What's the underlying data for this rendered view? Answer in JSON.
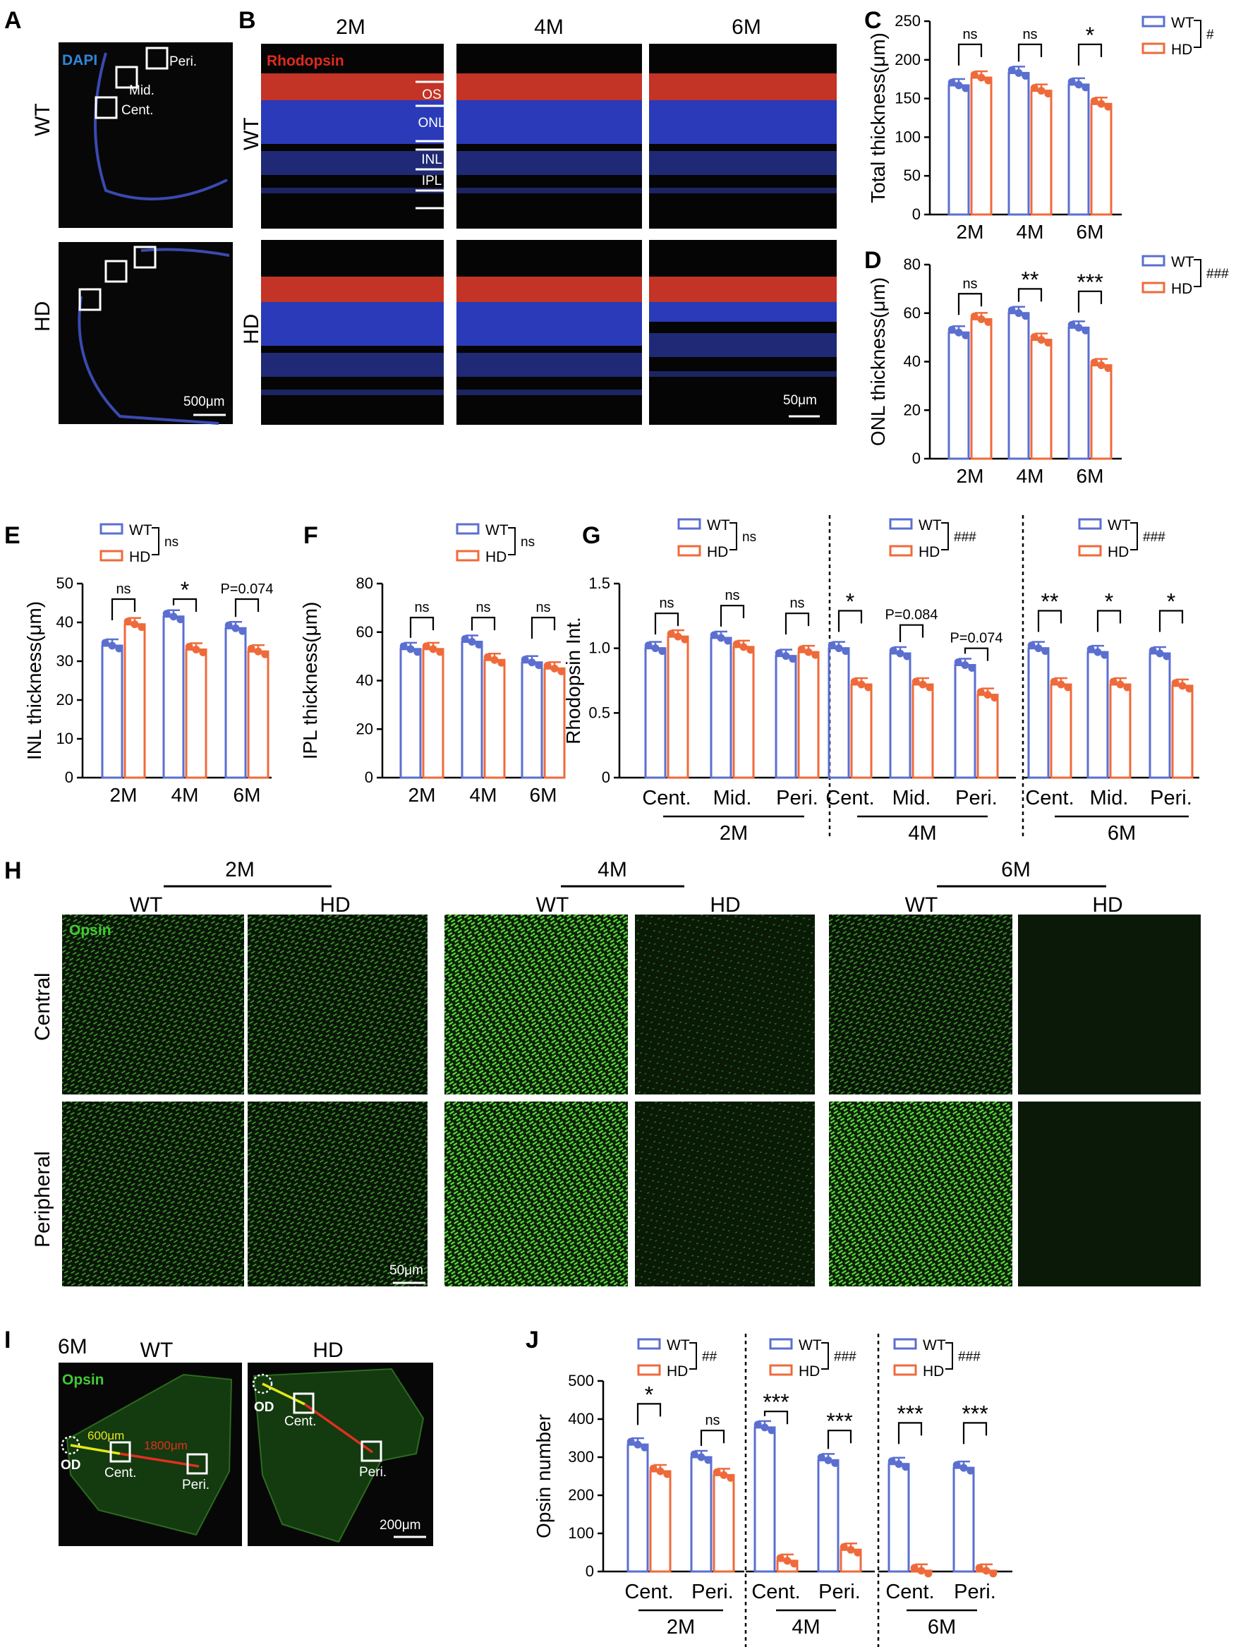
{
  "colors": {
    "wt": "#5b6fd0",
    "hd": "#ef6a3a",
    "black": "#000000",
    "micro_bg": "#070707",
    "blue_layer": "#2a3ab8",
    "red_layer": "#d83a2a",
    "green": "#42c934",
    "white": "#ffffff",
    "yellow": "#e4e81b",
    "red_line": "#e0301e"
  },
  "panel_letters": {
    "a": "A",
    "b": "B",
    "c": "C",
    "d": "D",
    "e": "E",
    "f": "F",
    "g": "G",
    "h": "H",
    "i": "I",
    "j": "J"
  },
  "legend": {
    "wt": "WT",
    "hd": "HD"
  },
  "panel_a": {
    "row_wt": "WT",
    "row_hd": "HD",
    "stain": "DAPI",
    "cent": "Cent.",
    "mid": "Mid.",
    "peri": "Peri.",
    "scale": "500μm"
  },
  "panel_b": {
    "cols": [
      "2M",
      "4M",
      "6M"
    ],
    "row_wt": "WT",
    "row_hd": "HD",
    "stain": "Rhodopsin",
    "layers": [
      "OS",
      "ONL",
      "INL",
      "IPL"
    ],
    "scale": "50μm"
  },
  "panel_h": {
    "groups": [
      "2M",
      "4M",
      "6M"
    ],
    "cols": [
      "WT",
      "HD",
      "WT",
      "HD",
      "WT",
      "HD"
    ],
    "rows": [
      "Central",
      "Peripheral"
    ],
    "stain": "Opsin",
    "scale": "50μm"
  },
  "panel_i": {
    "age": "6M",
    "wt": "WT",
    "hd": "HD",
    "stain": "Opsin",
    "dist1": "600μm",
    "dist2": "1800μm",
    "od": "OD",
    "cent": "Cent.",
    "peri": "Peri.",
    "scale": "200μm"
  },
  "chart_data": [
    {
      "panel": "C",
      "type": "bar",
      "ylabel": "Total thickness(μm)",
      "categories": [
        "2M",
        "4M",
        "6M"
      ],
      "ylim": [
        0,
        250
      ],
      "yticks": [
        0,
        50,
        100,
        150,
        200,
        250
      ],
      "series": [
        {
          "name": "WT",
          "values": [
            167,
            183,
            168
          ]
        },
        {
          "name": "HD",
          "values": [
            177,
            160,
            143
          ]
        }
      ],
      "group_sig": "#",
      "sig": [
        "ns",
        "ns",
        "*"
      ],
      "sig_y": [
        220,
        220,
        220
      ]
    },
    {
      "panel": "D",
      "type": "bar",
      "ylabel": "ONL thickness(μm)",
      "categories": [
        "2M",
        "4M",
        "6M"
      ],
      "ylim": [
        0,
        80
      ],
      "yticks": [
        0,
        20,
        40,
        60,
        80
      ],
      "series": [
        {
          "name": "WT",
          "values": [
            52,
            60,
            54
          ]
        },
        {
          "name": "HD",
          "values": [
            57.5,
            49,
            38.5
          ]
        }
      ],
      "group_sig": "###",
      "sig": [
        "ns",
        "**",
        "***"
      ],
      "sig_y": [
        68,
        70,
        69
      ]
    },
    {
      "panel": "E",
      "type": "bar",
      "ylabel": "INL thickness(μm)",
      "categories": [
        "2M",
        "4M",
        "6M"
      ],
      "ylim": [
        0,
        50
      ],
      "yticks": [
        0,
        10,
        20,
        30,
        40,
        50
      ],
      "series": [
        {
          "name": "WT",
          "values": [
            34,
            41.5,
            38.5
          ]
        },
        {
          "name": "HD",
          "values": [
            39.5,
            33,
            32.5
          ]
        }
      ],
      "group_sig": "ns",
      "sig": [
        "ns",
        "*",
        "P=0.074"
      ],
      "sig_y": [
        46,
        46,
        46
      ]
    },
    {
      "panel": "F",
      "type": "bar",
      "ylabel": "IPL thickness(μm)",
      "categories": [
        "2M",
        "4M",
        "6M"
      ],
      "ylim": [
        0,
        80
      ],
      "yticks": [
        0,
        20,
        40,
        60,
        80
      ],
      "series": [
        {
          "name": "WT",
          "values": [
            53,
            56,
            47.5
          ]
        },
        {
          "name": "HD",
          "values": [
            53,
            48.5,
            45
          ]
        }
      ],
      "group_sig": "ns",
      "sig": [
        "ns",
        "ns",
        "ns"
      ],
      "sig_y": [
        66,
        66,
        66
      ]
    },
    {
      "panel": "G",
      "type": "bar",
      "ylabel": "Rhodopsin Int.",
      "ylim": [
        0,
        1.5
      ],
      "yticks": [
        0,
        0.5,
        1.0,
        1.5
      ],
      "ytick_labels": [
        "0",
        "0.5",
        "1.0",
        "1.5"
      ],
      "groups": [
        {
          "label": "2M",
          "categories": [
            "Cent.",
            "Mid.",
            "Peri."
          ],
          "series": [
            {
              "name": "WT",
              "values": [
                1.0,
                1.08,
                0.94
              ]
            },
            {
              "name": "HD",
              "values": [
                1.09,
                1.01,
                0.97
              ]
            }
          ],
          "group_sig": "ns",
          "sig": [
            "ns",
            "ns",
            "ns"
          ],
          "sig_y": [
            1.27,
            1.33,
            1.27
          ]
        },
        {
          "label": "4M",
          "categories": [
            "Cent.",
            "Mid.",
            "Peri."
          ],
          "series": [
            {
              "name": "WT",
              "values": [
                1.0,
                0.96,
                0.87
              ]
            },
            {
              "name": "HD",
              "values": [
                0.72,
                0.72,
                0.64
              ]
            }
          ],
          "group_sig": "###",
          "sig": [
            "*",
            "P=0.084",
            "P=0.074"
          ],
          "sig_y": [
            1.29,
            1.18,
            1.0
          ]
        },
        {
          "label": "6M",
          "categories": [
            "Cent.",
            "Mid.",
            "Peri."
          ],
          "series": [
            {
              "name": "WT",
              "values": [
                1.0,
                0.97,
                0.96
              ]
            },
            {
              "name": "HD",
              "values": [
                0.72,
                0.72,
                0.71
              ]
            }
          ],
          "group_sig": "###",
          "sig": [
            "**",
            "*",
            "*"
          ],
          "sig_y": [
            1.29,
            1.29,
            1.29
          ]
        }
      ]
    },
    {
      "panel": "J",
      "type": "bar",
      "ylabel": "Opsin number",
      "ylim": [
        0,
        500
      ],
      "yticks": [
        0,
        100,
        200,
        300,
        400,
        500
      ],
      "groups": [
        {
          "label": "2M",
          "categories": [
            "Cent.",
            "Peri."
          ],
          "series": [
            {
              "name": "WT",
              "values": [
                333,
                300
              ]
            },
            {
              "name": "HD",
              "values": [
                263,
                253
              ]
            }
          ],
          "group_sig": "##",
          "sig": [
            "*",
            "ns"
          ],
          "sig_y": [
            440,
            370
          ]
        },
        {
          "label": "4M",
          "categories": [
            "Cent.",
            "Peri."
          ],
          "series": [
            {
              "name": "WT",
              "values": [
                378,
                292
              ]
            },
            {
              "name": "HD",
              "values": [
                28,
                57
              ]
            }
          ],
          "group_sig": "###",
          "sig": [
            "***",
            "***"
          ],
          "sig_y": [
            420,
            370
          ]
        },
        {
          "label": "6M",
          "categories": [
            "Cent.",
            "Peri."
          ],
          "series": [
            {
              "name": "WT",
              "values": [
                282,
                272
              ]
            },
            {
              "name": "HD",
              "values": [
                2,
                2
              ]
            }
          ],
          "group_sig": "###",
          "sig": [
            "***",
            "***"
          ],
          "sig_y": [
            390,
            390
          ]
        }
      ]
    }
  ]
}
